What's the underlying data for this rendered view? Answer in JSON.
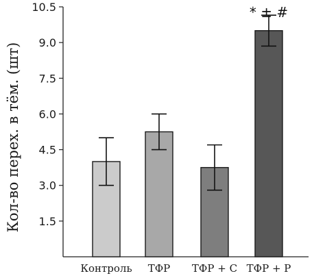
{
  "chart_data": {
    "type": "bar",
    "title": "",
    "xlabel": "",
    "ylabel": "Кол-во перех. в тём. (шт)",
    "ylim": [
      0,
      10.5
    ],
    "yticks": [
      1.5,
      3.0,
      4.5,
      6.0,
      7.5,
      9.0,
      10.5
    ],
    "ytick_labels": [
      "1.5",
      "3.0",
      "4.5",
      "6.0",
      "7.5",
      "9.0",
      "10.5"
    ],
    "grid": false,
    "legend": "none",
    "categories": [
      "Контроль",
      "ТФР",
      "ТФР + С",
      "ТФР + Р"
    ],
    "values": [
      4.0,
      5.25,
      3.75,
      9.5
    ],
    "error_low": [
      3.0,
      4.5,
      2.8,
      8.85
    ],
    "error_high": [
      5.0,
      6.0,
      4.7,
      10.15
    ],
    "colors": [
      "#cbcbcb",
      "#a8a8a8",
      "#7e7e7e",
      "#575757"
    ],
    "annotations": [
      {
        "category_index": 3,
        "text": "* ± #"
      }
    ]
  }
}
